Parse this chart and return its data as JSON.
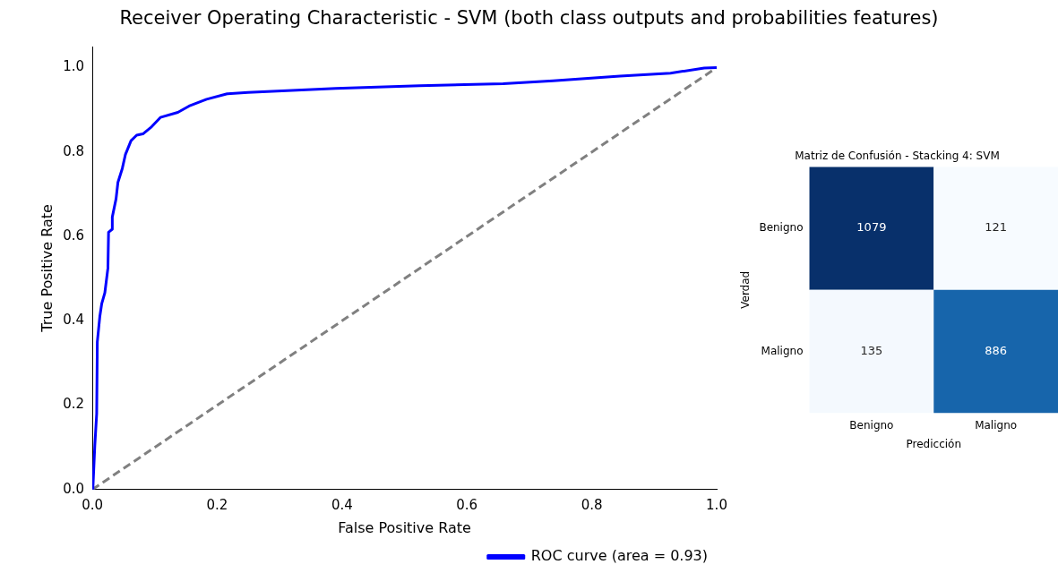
{
  "chart_data": [
    {
      "type": "line",
      "title": "Receiver Operating Characteristic - SVM (both class outputs and probabilities features)",
      "xlabel": "False Positive Rate",
      "ylabel": "True Positive Rate",
      "xlim": [
        0,
        1
      ],
      "ylim": [
        0,
        1.05
      ],
      "xticks": [
        {
          "value": 0,
          "label": "0.0"
        },
        0.2,
        0.4,
        0.6,
        0.8,
        {
          "value": 1,
          "label": "1.0"
        }
      ],
      "yticks": [
        {
          "value": 0,
          "label": "0.0"
        },
        0.2,
        0.4,
        0.6,
        0.8,
        {
          "value": 1,
          "label": "1.0"
        }
      ],
      "grid": false,
      "legend": "bottom right",
      "marker": "none",
      "series": [
        {
          "name": "ROC curve (area = 0.93)",
          "color": "#0000ff",
          "type": "line",
          "line_style": "solid",
          "x": [
            0,
            0.001,
            0.004,
            0.007,
            0.008,
            0.012,
            0.015,
            0.02,
            0.025,
            0.026,
            0.032,
            0.032,
            0.038,
            0.041,
            0.048,
            0.053,
            0.062,
            0.071,
            0.081,
            0.095,
            0.109,
            0.137,
            0.155,
            0.183,
            0.216,
            0.249,
            0.39,
            0.524,
            0.658,
            0.738,
            0.845,
            0.926,
            0.98,
            1
          ],
          "values": [
            0,
            0.005,
            0.105,
            0.18,
            0.35,
            0.41,
            0.44,
            0.466,
            0.525,
            0.61,
            0.617,
            0.646,
            0.689,
            0.728,
            0.761,
            0.794,
            0.827,
            0.84,
            0.843,
            0.86,
            0.882,
            0.894,
            0.909,
            0.925,
            0.938,
            0.941,
            0.951,
            0.957,
            0.962,
            0.969,
            0.98,
            0.987,
            0.999,
            1
          ]
        },
        {
          "color": "#808080",
          "type": "line",
          "line_style": "dashed",
          "x": [
            0,
            1
          ],
          "values": [
            0,
            1
          ]
        }
      ]
    },
    {
      "type": "heatmap",
      "title": "Matriz de Confusión - Stacking 4: SVM",
      "xlabel": "Predicción",
      "ylabel": "Verdad",
      "categories": [
        "Benigno",
        "Maligno"
      ],
      "y_categories": [
        "Benigno",
        "Maligno"
      ],
      "cells": [
        [
          1079,
          121
        ],
        [
          135,
          886
        ]
      ],
      "data_labels": true
    }
  ]
}
